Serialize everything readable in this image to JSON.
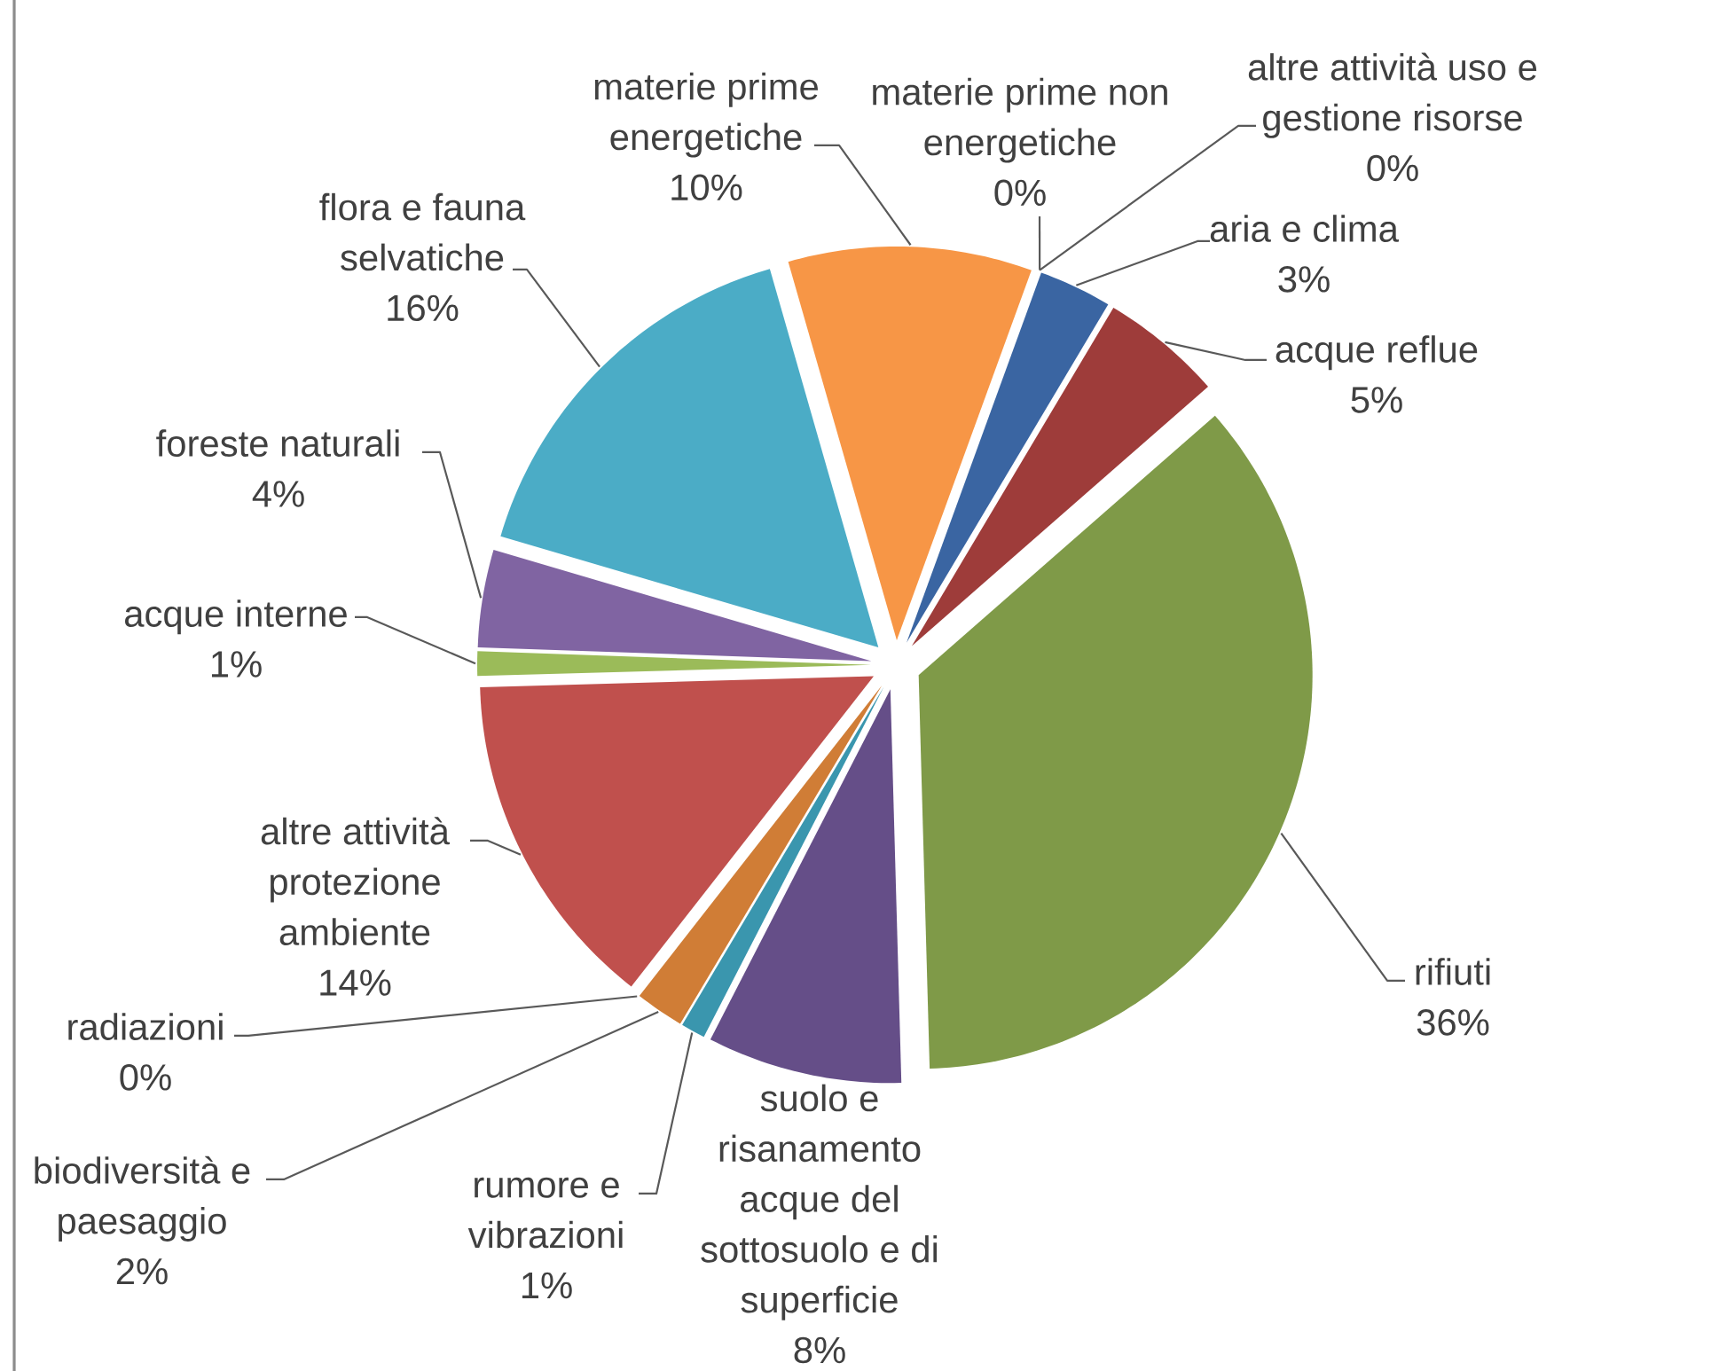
{
  "chart_data": {
    "type": "pie",
    "categories": [
      "aria e clima",
      "acque reflue",
      "rifiuti",
      "suolo e risanamento acque del sottosuolo e di superficie",
      "rumore e vibrazioni",
      "biodiversità e paesaggio",
      "radiazioni",
      "altre attività protezione ambiente",
      "acque interne",
      "foreste naturali",
      "flora e fauna selvatiche",
      "materie prime energetiche",
      "materie prime non energetiche",
      "altre attività uso e gestione risorse"
    ],
    "values": [
      3,
      5,
      36,
      8,
      1,
      2,
      0,
      14,
      1,
      4,
      16,
      10,
      0,
      0
    ],
    "value_labels": [
      "3%",
      "5%",
      "36%",
      "8%",
      "1%",
      "2%",
      "0%",
      "14%",
      "1%",
      "4%",
      "16%",
      "10%",
      "0%",
      "0%"
    ],
    "colors": [
      "#3A65A2",
      "#9E3C3A",
      "#7F9A48",
      "#654E88",
      "#3A96AE",
      "#D07D36",
      null,
      "#C0504D",
      "#9BBB59",
      "#8064A2",
      "#4BACC6",
      "#F79646",
      null,
      null
    ]
  }
}
